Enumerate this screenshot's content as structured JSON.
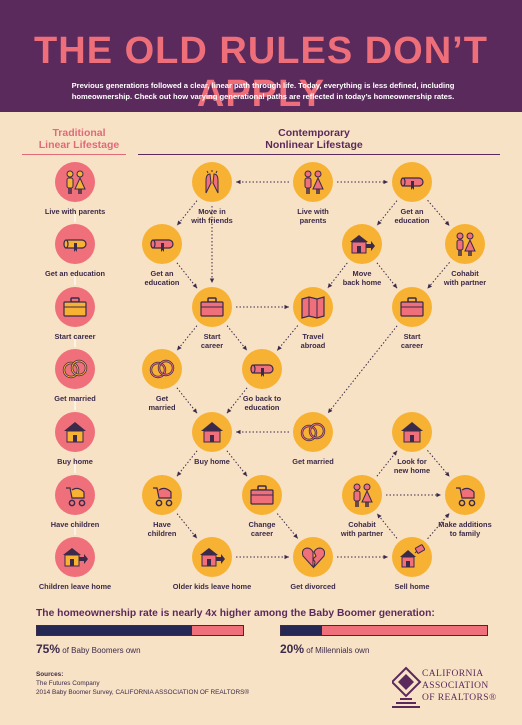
{
  "header": {
    "title": "THE OLD RULES DON’T APPLY",
    "subtitle": "Previous generations followed a clear, linear path through life. Today, everything is less defined, including homeownership. Check out how varying generational paths are reflected in today’s homeownership rates."
  },
  "traditional": {
    "heading_line1": "Traditional",
    "heading_line2": "Linear Lifestage",
    "steps": [
      {
        "label": "Live with parents",
        "icon": "parents-icon"
      },
      {
        "label": "Get an education",
        "icon": "diploma-icon"
      },
      {
        "label": "Start career",
        "icon": "briefcase-icon"
      },
      {
        "label": "Get married",
        "icon": "rings-icon"
      },
      {
        "label": "Buy home",
        "icon": "house-icon"
      },
      {
        "label": "Have children",
        "icon": "stroller-icon"
      },
      {
        "label": "Children leave home",
        "icon": "house-arrow-icon"
      }
    ]
  },
  "contemporary": {
    "heading_line1": "Contemporary",
    "heading_line2": "Nonlinear Lifestage",
    "nodes": [
      {
        "id": "move-in-friends",
        "label": "Move in\nwith friends",
        "icon": "high-five-icon"
      },
      {
        "id": "live-parents",
        "label": "Live with\nparents",
        "icon": "parents-icon"
      },
      {
        "id": "education-right",
        "label": "Get an\neducation",
        "icon": "diploma-icon"
      },
      {
        "id": "education-left",
        "label": "Get an\neducation",
        "icon": "diploma-icon"
      },
      {
        "id": "move-back-home",
        "label": "Move\nback home",
        "icon": "house-arrow-icon"
      },
      {
        "id": "cohabit-top",
        "label": "Cohabit\nwith partner",
        "icon": "couple-icon"
      },
      {
        "id": "start-career-left",
        "label": "Start\ncareer",
        "icon": "briefcase-icon"
      },
      {
        "id": "travel-abroad",
        "label": "Travel\nabroad",
        "icon": "map-icon"
      },
      {
        "id": "start-career-right",
        "label": "Start\ncareer",
        "icon": "briefcase-icon"
      },
      {
        "id": "get-married-left",
        "label": "Get\nmarried",
        "icon": "rings-icon"
      },
      {
        "id": "back-to-education",
        "label": "Go back to\neducation",
        "icon": "diploma-icon"
      },
      {
        "id": "buy-home",
        "label": "Buy home",
        "icon": "house-icon"
      },
      {
        "id": "get-married-mid",
        "label": "Get married",
        "icon": "rings-icon"
      },
      {
        "id": "look-new-home",
        "label": "Look for\nnew home",
        "icon": "house-icon"
      },
      {
        "id": "have-children",
        "label": "Have\nchildren",
        "icon": "stroller-icon"
      },
      {
        "id": "change-career",
        "label": "Change\ncareer",
        "icon": "briefcase-icon"
      },
      {
        "id": "cohabit-bottom",
        "label": "Cohabit\nwith partner",
        "icon": "couple-icon"
      },
      {
        "id": "additions-family",
        "label": "Make additions\nto family",
        "icon": "stroller-icon"
      },
      {
        "id": "older-kids-leave",
        "label": "Older kids leave home",
        "icon": "house-arrow-icon"
      },
      {
        "id": "get-divorced",
        "label": "Get divorced",
        "icon": "broken-heart-icon"
      },
      {
        "id": "sell-home",
        "label": "Sell home",
        "icon": "sell-home-icon"
      }
    ]
  },
  "stats": {
    "headline": "The homeownership rate is nearly 4x higher among the Baby Boomer generation:",
    "boomers": {
      "value": "75%",
      "text": "of Baby Boomers own",
      "fraction": 0.75
    },
    "millennials": {
      "value": "20%",
      "text": "of Millennials own",
      "fraction": 0.2
    }
  },
  "sources": {
    "heading": "Sources:",
    "line1": "The Futures Company",
    "line2": "2014 Baby Boomer Survey, CALIFORNIA ASSOCIATION OF REALTORS®"
  },
  "logo": {
    "line1": "CALIFORNIA",
    "line2": "ASSOCIATION",
    "line3": "OF REALTORS®"
  },
  "colors": {
    "header_bg": "#5b2a5c",
    "title": "#ee6f7a",
    "background": "#f8e2c5",
    "pink": "#ef6f7b",
    "gold": "#f7b233",
    "navy": "#252852"
  }
}
